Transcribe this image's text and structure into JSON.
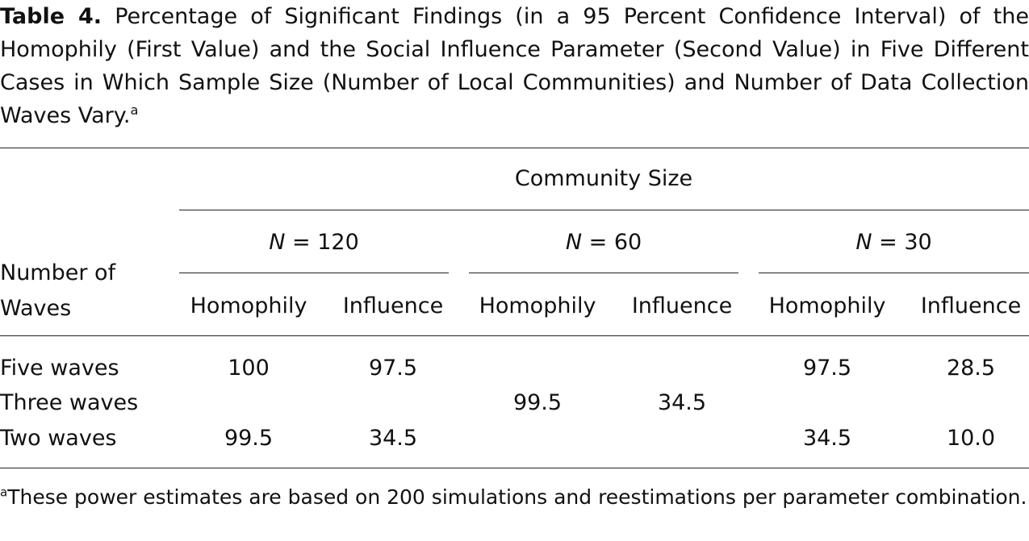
{
  "caption": {
    "label": "Table 4.",
    "text": "Percentage of Significant Findings (in a 95 Percent Confidence Interval) of the Homophily (First Value) and the Social Influence Parameter (Second Value) in Five Different Cases in Which Sample Size (Number of Local Communities) and Number of Data Collection Waves Vary.",
    "note_mark": "a"
  },
  "table": {
    "spanner": "Community Size",
    "row_header": "Number of Waves",
    "groups": [
      {
        "variable": "N",
        "value": "= 120"
      },
      {
        "variable": "N",
        "value": "= 60"
      },
      {
        "variable": "N",
        "value": "= 30"
      }
    ],
    "subheaders": [
      "Homophily",
      "Influence",
      "Homophily",
      "Influence",
      "Homophily",
      "Influence"
    ],
    "rows": [
      {
        "label": "Five waves",
        "cells": [
          "100",
          "97.5",
          null,
          null,
          "97.5",
          "28.5"
        ]
      },
      {
        "label": "Three waves",
        "cells": [
          null,
          null,
          "99.5",
          "34.5",
          null,
          null
        ]
      },
      {
        "label": "Two waves",
        "cells": [
          "99.5",
          "34.5",
          null,
          null,
          "34.5",
          "10.0"
        ]
      }
    ]
  },
  "footnote": {
    "mark": "a",
    "text": "These power estimates are based on 200 simulations and reestimations per parameter combination."
  }
}
